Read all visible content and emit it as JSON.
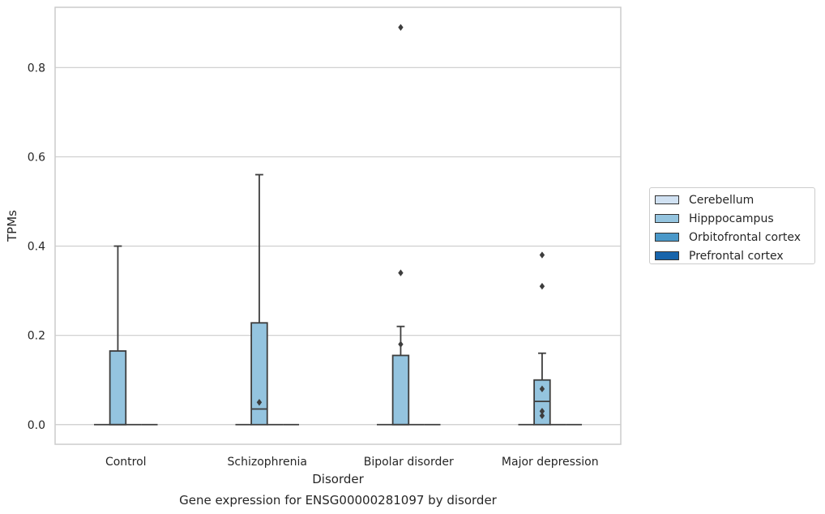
{
  "chart_data": {
    "type": "boxplot",
    "title": "Gene expression for ENSG00000281097 by disorder",
    "xlabel": "Disorder",
    "ylabel": "TPMs",
    "categories": [
      "Control",
      "Schizophrenia",
      "Bipolar disorder",
      "Major depression"
    ],
    "ylim": [
      -0.044,
      0.935
    ],
    "yticks": [
      0.0,
      0.2,
      0.4,
      0.6,
      0.8
    ],
    "ytick_labels": [
      "0.0",
      "0.2",
      "0.4",
      "0.6",
      "0.8"
    ],
    "grid": true,
    "legend_position": "right",
    "series": [
      {
        "name": "Cerebellum",
        "color": "#d0e1f2",
        "boxes": [
          {
            "min": 0,
            "q1": 0,
            "median": 0,
            "q3": 0,
            "max": 0,
            "outliers": []
          },
          {
            "min": 0,
            "q1": 0,
            "median": 0,
            "q3": 0,
            "max": 0,
            "outliers": []
          },
          {
            "min": 0,
            "q1": 0,
            "median": 0,
            "q3": 0,
            "max": 0,
            "outliers": []
          },
          {
            "min": 0,
            "q1": 0,
            "median": 0,
            "q3": 0,
            "max": 0,
            "outliers": []
          }
        ]
      },
      {
        "name": "Hipppocampus",
        "color": "#94c4df",
        "boxes": [
          {
            "min": 0,
            "q1": 0,
            "median": 0,
            "q3": 0.165,
            "max": 0.4,
            "outliers": []
          },
          {
            "min": 0,
            "q1": 0,
            "median": 0.035,
            "q3": 0.228,
            "max": 0.56,
            "outliers": [
              0.05
            ]
          },
          {
            "min": 0,
            "q1": 0,
            "median": 0,
            "q3": 0.155,
            "max": 0.22,
            "outliers": [
              0.34,
              0.18,
              0.89
            ]
          },
          {
            "min": 0,
            "q1": 0,
            "median": 0.052,
            "q3": 0.1,
            "max": 0.16,
            "outliers": [
              0.38,
              0.31,
              0.08,
              0.03,
              0.02
            ]
          }
        ]
      },
      {
        "name": "Orbitofrontal cortex",
        "color": "#4a98c9",
        "boxes": [
          {
            "min": 0,
            "q1": 0,
            "median": 0,
            "q3": 0,
            "max": 0,
            "outliers": []
          },
          {
            "min": 0,
            "q1": 0,
            "median": 0,
            "q3": 0,
            "max": 0,
            "outliers": []
          },
          {
            "min": 0,
            "q1": 0,
            "median": 0,
            "q3": 0,
            "max": 0,
            "outliers": []
          },
          {
            "min": 0,
            "q1": 0,
            "median": 0,
            "q3": 0,
            "max": 0,
            "outliers": []
          }
        ]
      },
      {
        "name": "Prefrontal cortex",
        "color": "#1764ab",
        "boxes": [
          {
            "min": 0,
            "q1": 0,
            "median": 0,
            "q3": 0,
            "max": 0,
            "outliers": []
          },
          {
            "min": 0,
            "q1": 0,
            "median": 0,
            "q3": 0,
            "max": 0,
            "outliers": []
          },
          {
            "min": 0,
            "q1": 0,
            "median": 0,
            "q3": 0,
            "max": 0,
            "outliers": []
          },
          {
            "min": 0,
            "q1": 0,
            "median": 0,
            "q3": 0,
            "max": 0,
            "outliers": []
          }
        ]
      }
    ]
  },
  "colors": {
    "grid": "#cccccc",
    "frame": "#cccccc",
    "box_edge": "#3d3d3d",
    "text": "#262626"
  }
}
